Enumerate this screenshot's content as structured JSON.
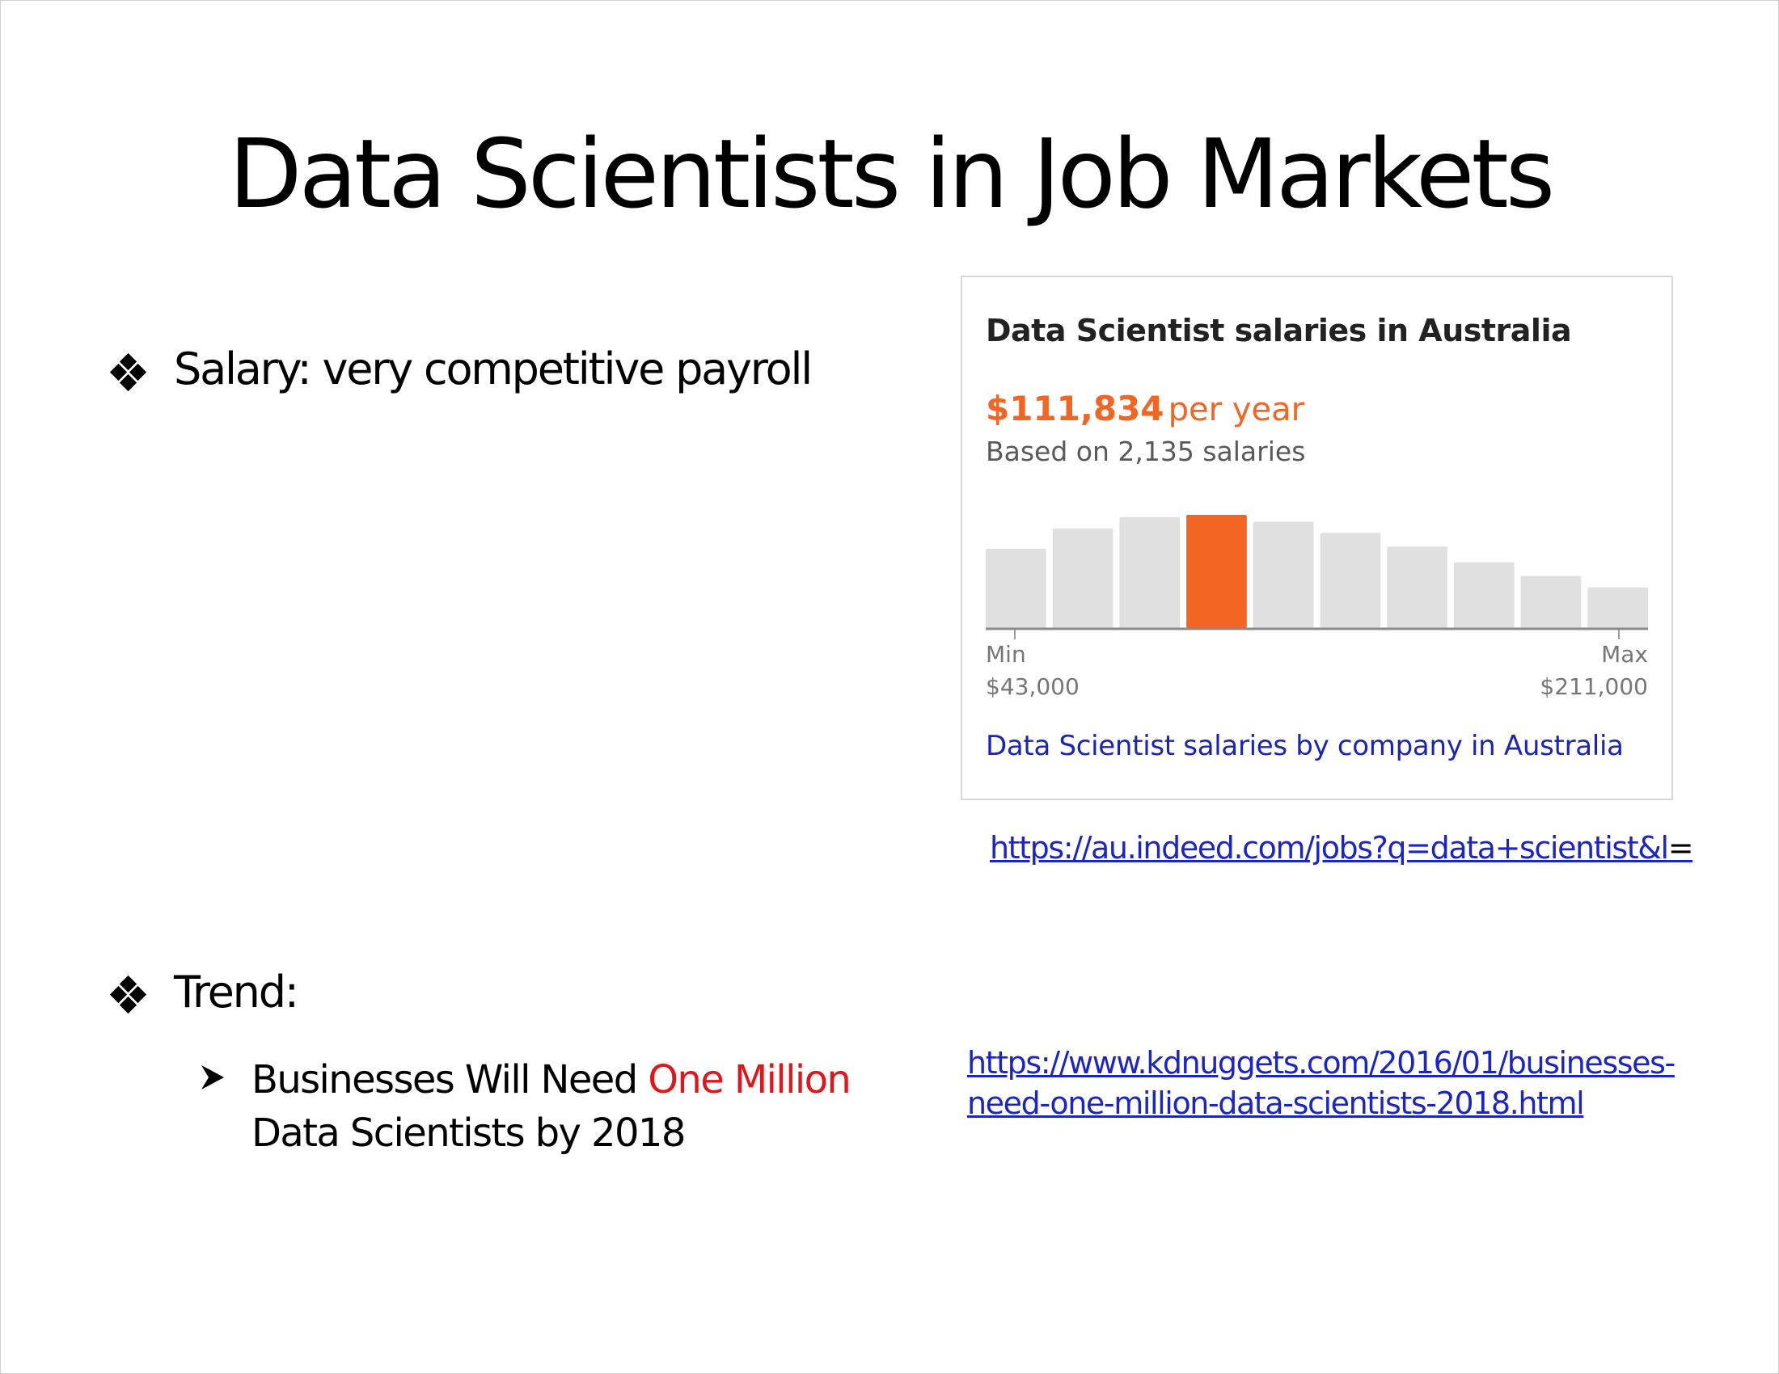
{
  "slide": {
    "title": "Data Scientists in Job Markets",
    "bullets": {
      "salary": "Salary: very competitive payroll",
      "trend": "Trend:"
    },
    "sub_bullet": {
      "prefix": "Businesses Will Need ",
      "highlight": "One Million",
      "line2": "Data Scientists by 2018"
    },
    "links": {
      "indeed": "https://au.indeed.com/jobs?q=data+scientist&l",
      "indeed_suffix": "=",
      "kdnuggets_line1": "https://www.kdnuggets.com/2016/01/businesses-",
      "kdnuggets_line2": "need-one-million-data-scientists-2018.html"
    }
  },
  "salary_card": {
    "title": "Data Scientist salaries in Australia",
    "amount": "$111,834",
    "unit": "per year",
    "based_on": "Based on 2,135 salaries",
    "min_label": "Min",
    "min_value": "$43,000",
    "max_label": "Max",
    "max_value": "$211,000",
    "company_link": "Data Scientist salaries by company in Australia"
  },
  "colors": {
    "highlight_text": "#e0161b",
    "accent_bar": "#f26522",
    "neutral_bar": "#e0e0e0",
    "link": "#1a24c8"
  },
  "chart_data": {
    "type": "bar",
    "title": "Data Scientist salaries in Australia",
    "values": [
      70,
      88,
      98,
      100,
      94,
      84,
      72,
      58,
      46,
      36
    ],
    "highlight_index": 3,
    "ylim": [
      0,
      100
    ],
    "x_range_labels": [
      "$43,000",
      "$211,000"
    ],
    "grid": false
  }
}
